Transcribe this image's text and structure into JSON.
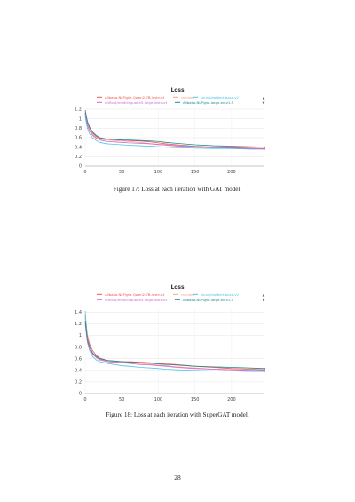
{
  "page_number": "28",
  "figures": [
    {
      "caption": "Figure 17: Loss at each iteration with GAT model."
    },
    {
      "caption": "Figure 18: Loss at each iteration with SuperGAT model."
    }
  ],
  "colors": {
    "Alibaba-NLP/gte-Qwen2-7B-instruct": "#ef5350",
    "random": "#f9a08c",
    "sinai/photbert-base-v2": "#4fc3e8",
    "intfloat/multilingual-e5-large-instruct": "#c86cd6",
    "Alibaba-NLP/gte-large-en-v1.5": "#1f8a8a"
  },
  "legend_controls": {
    "up": "▲",
    "down": "▼"
  },
  "chart_data": [
    {
      "type": "line",
      "title": "Loss",
      "xlabel": "",
      "ylabel": "",
      "xlim": [
        0,
        245
      ],
      "ylim": [
        0,
        1.2
      ],
      "xticks": [
        "0",
        "50",
        "100",
        "150",
        "200"
      ],
      "yticks": [
        "0",
        "0.2",
        "0.4",
        "0.6",
        "0.8",
        "1",
        "1.2"
      ],
      "grid": true,
      "legend_position": "top",
      "series": [
        {
          "name": "Alibaba-NLP/gte-Qwen2-7B-instruct",
          "x": [
            0,
            3,
            6,
            10,
            15,
            20,
            30,
            40,
            50,
            60,
            75,
            90,
            100,
            110,
            125,
            150,
            175,
            200,
            225,
            245
          ],
          "y": [
            1.13,
            0.92,
            0.8,
            0.7,
            0.63,
            0.59,
            0.57,
            0.56,
            0.55,
            0.54,
            0.53,
            0.51,
            0.49,
            0.47,
            0.45,
            0.42,
            0.4,
            0.39,
            0.38,
            0.37
          ]
        },
        {
          "name": "random",
          "x": [
            0,
            3,
            6,
            10,
            15,
            20,
            30,
            40,
            50,
            60,
            75,
            90,
            100,
            110,
            125,
            150,
            175,
            200,
            225,
            245
          ],
          "y": [
            1.1,
            0.88,
            0.76,
            0.67,
            0.61,
            0.57,
            0.55,
            0.54,
            0.53,
            0.52,
            0.5,
            0.47,
            0.45,
            0.44,
            0.42,
            0.4,
            0.38,
            0.37,
            0.36,
            0.36
          ]
        },
        {
          "name": "sinai/photbert-base-v2",
          "x": [
            0,
            3,
            6,
            10,
            15,
            20,
            30,
            40,
            50,
            60,
            75,
            90,
            100,
            110,
            125,
            150,
            175,
            200,
            225,
            245
          ],
          "y": [
            1.05,
            0.8,
            0.68,
            0.6,
            0.54,
            0.5,
            0.47,
            0.46,
            0.45,
            0.44,
            0.43,
            0.42,
            0.41,
            0.4,
            0.39,
            0.38,
            0.37,
            0.37,
            0.36,
            0.36
          ]
        },
        {
          "name": "intfloat/multilingual-e5-large-instruct",
          "x": [
            0,
            3,
            6,
            10,
            15,
            20,
            30,
            40,
            50,
            60,
            75,
            90,
            100,
            110,
            125,
            150,
            175,
            200,
            225,
            245
          ],
          "y": [
            1.12,
            0.86,
            0.74,
            0.65,
            0.59,
            0.55,
            0.52,
            0.51,
            0.5,
            0.49,
            0.48,
            0.47,
            0.46,
            0.45,
            0.43,
            0.41,
            0.39,
            0.38,
            0.37,
            0.36
          ]
        },
        {
          "name": "Alibaba-NLP/gte-large-en-v1.5",
          "x": [
            0,
            3,
            6,
            10,
            15,
            20,
            30,
            40,
            50,
            60,
            75,
            90,
            100,
            110,
            125,
            150,
            175,
            200,
            225,
            245
          ],
          "y": [
            1.18,
            0.95,
            0.82,
            0.72,
            0.65,
            0.6,
            0.57,
            0.56,
            0.55,
            0.55,
            0.54,
            0.53,
            0.52,
            0.5,
            0.48,
            0.45,
            0.43,
            0.42,
            0.41,
            0.4
          ]
        }
      ]
    },
    {
      "type": "line",
      "title": "Loss",
      "xlabel": "",
      "ylabel": "",
      "xlim": [
        0,
        245
      ],
      "ylim": [
        0,
        1.45
      ],
      "xticks": [
        "0",
        "50",
        "100",
        "150",
        "200"
      ],
      "yticks": [
        "0",
        "0.2",
        "0.4",
        "0.6",
        "0.8",
        "1",
        "1.2",
        "1.4"
      ],
      "grid": true,
      "legend_position": "top",
      "series": [
        {
          "name": "Alibaba-NLP/gte-Qwen2-7B-instruct",
          "x": [
            0,
            3,
            6,
            10,
            15,
            20,
            30,
            40,
            50,
            60,
            75,
            90,
            100,
            110,
            125,
            150,
            175,
            200,
            225,
            245
          ],
          "y": [
            1.35,
            1.0,
            0.85,
            0.74,
            0.66,
            0.61,
            0.57,
            0.56,
            0.55,
            0.55,
            0.54,
            0.53,
            0.52,
            0.51,
            0.5,
            0.47,
            0.45,
            0.43,
            0.42,
            0.41
          ]
        },
        {
          "name": "random",
          "x": [
            0,
            3,
            6,
            10,
            15,
            20,
            30,
            40,
            50,
            60,
            75,
            90,
            100,
            110,
            125,
            150,
            175,
            200,
            225,
            245
          ],
          "y": [
            1.3,
            0.95,
            0.8,
            0.7,
            0.63,
            0.59,
            0.56,
            0.55,
            0.54,
            0.53,
            0.52,
            0.5,
            0.49,
            0.48,
            0.46,
            0.44,
            0.42,
            0.41,
            0.4,
            0.4
          ]
        },
        {
          "name": "sinai/photbert-base-v2",
          "x": [
            0,
            3,
            6,
            10,
            15,
            20,
            30,
            40,
            50,
            60,
            75,
            90,
            100,
            110,
            125,
            150,
            175,
            200,
            225,
            245
          ],
          "y": [
            1.42,
            0.9,
            0.74,
            0.64,
            0.58,
            0.55,
            0.52,
            0.5,
            0.48,
            0.47,
            0.45,
            0.44,
            0.43,
            0.42,
            0.41,
            0.4,
            0.39,
            0.39,
            0.38,
            0.38
          ]
        },
        {
          "name": "intfloat/multilingual-e5-large-instruct",
          "x": [
            0,
            3,
            6,
            10,
            15,
            20,
            30,
            40,
            50,
            60,
            75,
            90,
            100,
            110,
            125,
            150,
            175,
            200,
            225,
            245
          ],
          "y": [
            1.2,
            0.88,
            0.76,
            0.68,
            0.62,
            0.58,
            0.55,
            0.54,
            0.53,
            0.52,
            0.5,
            0.49,
            0.48,
            0.47,
            0.45,
            0.43,
            0.42,
            0.41,
            0.4,
            0.4
          ]
        },
        {
          "name": "Alibaba-NLP/gte-large-en-v1.5",
          "x": [
            0,
            3,
            6,
            10,
            15,
            20,
            30,
            40,
            50,
            60,
            75,
            90,
            100,
            110,
            125,
            150,
            175,
            200,
            225,
            245
          ],
          "y": [
            1.25,
            0.93,
            0.8,
            0.7,
            0.64,
            0.6,
            0.57,
            0.56,
            0.55,
            0.54,
            0.53,
            0.52,
            0.51,
            0.5,
            0.49,
            0.47,
            0.46,
            0.45,
            0.44,
            0.43
          ]
        }
      ]
    }
  ]
}
